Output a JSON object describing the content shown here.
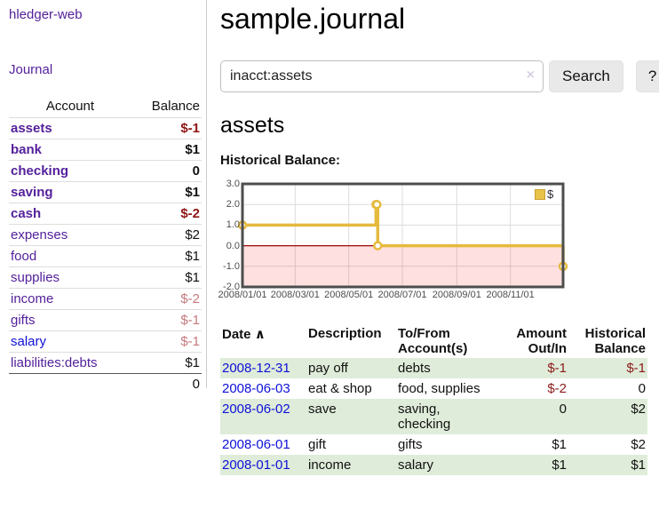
{
  "app": {
    "brand": "hledger-web",
    "nav_journal": "Journal"
  },
  "sidebar": {
    "columns": {
      "account": "Account",
      "balance": "Balance"
    },
    "accounts": [
      {
        "name": "assets",
        "level": 1,
        "balance": "$-1",
        "bold": true,
        "neg": "strong",
        "link": "purple"
      },
      {
        "name": "bank",
        "level": 2,
        "balance": "$1",
        "bold": true,
        "neg": "none",
        "link": "purple"
      },
      {
        "name": "checking",
        "level": 3,
        "balance": "0",
        "bold": true,
        "neg": "none",
        "link": "purple"
      },
      {
        "name": "saving",
        "level": 3,
        "balance": "$1",
        "bold": true,
        "neg": "none",
        "link": "purple"
      },
      {
        "name": "cash",
        "level": 2,
        "balance": "$-2",
        "bold": true,
        "neg": "strong",
        "link": "purple"
      },
      {
        "name": "expenses",
        "level": 1,
        "balance": "$2",
        "bold": false,
        "neg": "none",
        "link": "purple"
      },
      {
        "name": "food",
        "level": 2,
        "balance": "$1",
        "bold": false,
        "neg": "none",
        "link": "purple"
      },
      {
        "name": "supplies",
        "level": 2,
        "balance": "$1",
        "bold": false,
        "neg": "none",
        "link": "purple"
      },
      {
        "name": "income",
        "level": 1,
        "balance": "$-2",
        "bold": false,
        "neg": "light",
        "link": "purple"
      },
      {
        "name": "gifts",
        "level": 2,
        "balance": "$-1",
        "bold": false,
        "neg": "light",
        "link": "purple"
      },
      {
        "name": "salary",
        "level": 2,
        "balance": "$-1",
        "bold": false,
        "neg": "light",
        "link": "blue"
      },
      {
        "name": "liabilities:debts",
        "level": 1,
        "balance": "$1",
        "bold": false,
        "neg": "none",
        "link": "purple"
      }
    ],
    "total": "0"
  },
  "header": {
    "title": "sample.journal"
  },
  "search": {
    "value": "inacct:assets",
    "clear_icon": "×",
    "button": "Search",
    "help_button": "?"
  },
  "account_page": {
    "heading": "assets",
    "chart_label": "Historical Balance:"
  },
  "chart_data": {
    "type": "line",
    "mode": "steps",
    "title": "Historical Balance",
    "series": [
      {
        "name": "$",
        "points": [
          [
            "2008-01-01",
            1
          ],
          [
            "2008-06-01",
            2
          ],
          [
            "2008-06-02",
            2
          ],
          [
            "2008-06-03",
            0
          ],
          [
            "2008-12-31",
            -1
          ]
        ]
      }
    ],
    "xlim": [
      "2008-01-01",
      "2008-12-31"
    ],
    "ylim": [
      -2,
      3
    ],
    "y_ticks": [
      "3.0",
      "2.0",
      "1.0",
      "0.0",
      "-1.0",
      "-2.0"
    ],
    "x_ticks": [
      "2008/01/01",
      "2008/03/01",
      "2008/05/01",
      "2008/07/01",
      "2008/09/01",
      "2008/11/01"
    ],
    "grid": true,
    "legend": "$",
    "legend_position": "top-right",
    "negative_region_shaded": true
  },
  "register": {
    "columns": {
      "date": "Date",
      "sort_icon": "∧",
      "description": "Description",
      "accounts": "To/From Account(s)",
      "amount": "Amount Out/In",
      "balance": "Historical Balance"
    },
    "rows": [
      {
        "date": "2008-12-31",
        "description": "pay off",
        "accounts": "debts",
        "amount": "$-1",
        "balance": "$-1"
      },
      {
        "date": "2008-06-03",
        "description": "eat & shop",
        "accounts": "food, supplies",
        "amount": "$-2",
        "balance": "0"
      },
      {
        "date": "2008-06-02",
        "description": "save",
        "accounts": "saving, checking",
        "amount": "0",
        "balance": "$2"
      },
      {
        "date": "2008-06-01",
        "description": "gift",
        "accounts": "gifts",
        "amount": "$1",
        "balance": "$2"
      },
      {
        "date": "2008-01-01",
        "description": "income",
        "accounts": "salary",
        "amount": "$1",
        "balance": "$1"
      }
    ]
  },
  "colors": {
    "link_purple": "#54219b",
    "link_blue": "#0f10d8",
    "negative_strong": "#8f1515",
    "negative_light": "#c5797d",
    "register_negative": "#8c1a1a",
    "stripe_green": "#dfecd9",
    "chart_line_gold": "#e5ba3e",
    "chart_negative_fill": "#ff0000",
    "chart_zero_line": "#9c0606",
    "chart_border": "#4d4d4d",
    "chart_grid": "#dcdcdc",
    "legend_swatch": "#e9c24a"
  }
}
